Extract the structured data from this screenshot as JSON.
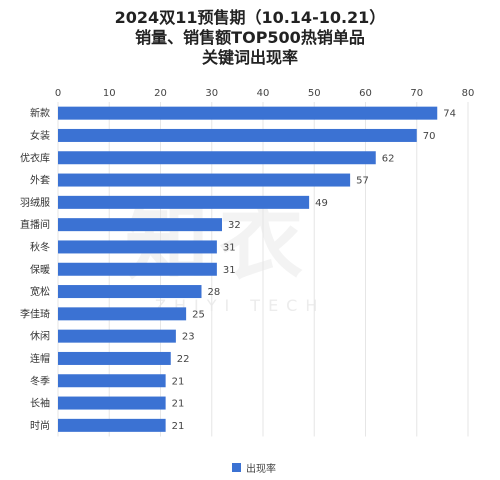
{
  "title_lines": [
    "2024双11预售期（10.14-10.21）",
    "销量、销售额TOP500热销单品",
    "关键词出现率"
  ],
  "watermark": {
    "main": "知衣",
    "sub": "ZHIYI TECH"
  },
  "colors": {
    "bar": "#3b72d3",
    "grid": "#e6e6e6"
  },
  "chart_data": {
    "type": "bar",
    "orientation": "horizontal",
    "title": "2024双11预售期（10.14-10.21） 销量、销售额TOP500热销单品 关键词出现率",
    "categories": [
      "新款",
      "女装",
      "优衣库",
      "外套",
      "羽绒服",
      "直播间",
      "秋冬",
      "保暖",
      "宽松",
      "李佳琦",
      "休闲",
      "连帽",
      "冬季",
      "长袖",
      "时尚"
    ],
    "series": [
      {
        "name": "出现率",
        "values": [
          74,
          70,
          62,
          57,
          49,
          32,
          31,
          31,
          28,
          25,
          23,
          22,
          21,
          21,
          21
        ]
      }
    ],
    "xlim": [
      0,
      80
    ],
    "xticks": [
      0,
      10,
      20,
      30,
      40,
      50,
      60,
      70,
      80
    ],
    "xaxis_position": "top",
    "grid": true,
    "legend_position": "bottom-center",
    "data_labels": true
  }
}
